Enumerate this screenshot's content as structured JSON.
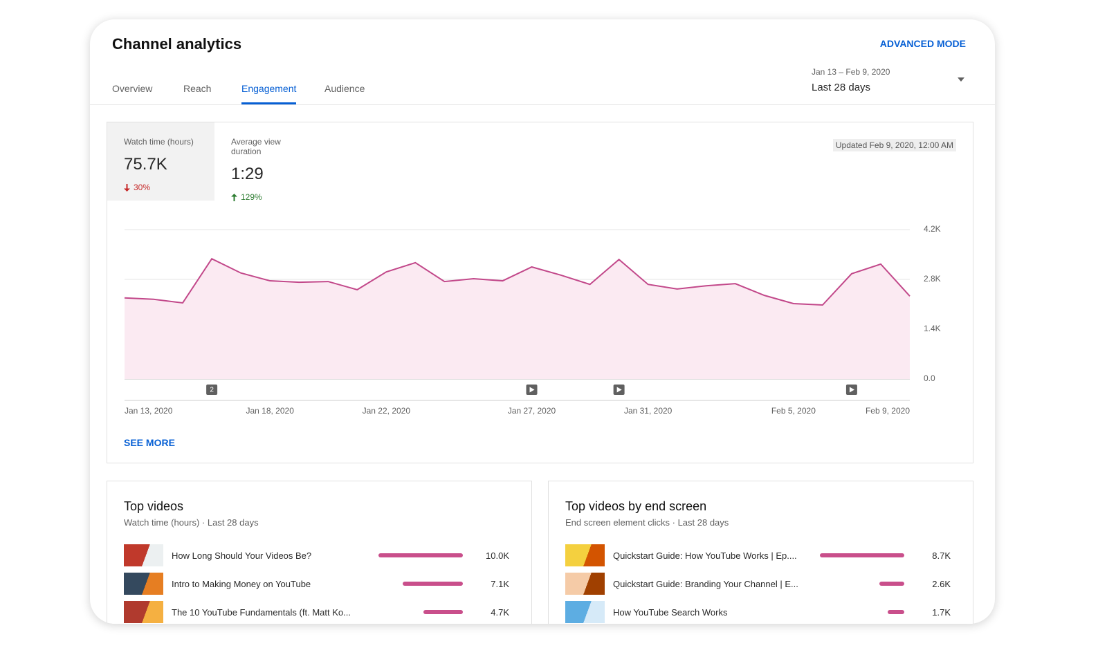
{
  "header": {
    "title": "Channel analytics",
    "advanced_mode": "ADVANCED MODE",
    "tabs": [
      "Overview",
      "Reach",
      "Engagement",
      "Audience"
    ],
    "active_tab": 2,
    "date_range": "Jan 13 – Feb 9, 2020",
    "period": "Last 28 days"
  },
  "metrics": [
    {
      "label": "Watch time (hours)",
      "value": "75.7K",
      "change": "30%",
      "trend": "down"
    },
    {
      "label": "Average view duration",
      "value": "1:29",
      "change": "129%",
      "trend": "up"
    }
  ],
  "selected_metric": 0,
  "updated": "Updated Feb 9, 2020, 12:00 AM",
  "chart_data": {
    "type": "area",
    "categories": [
      "Jan 13, 2020",
      null,
      null,
      null,
      null,
      "Jan 18, 2020",
      null,
      null,
      null,
      "Jan 22, 2020",
      null,
      null,
      null,
      null,
      "Jan 27, 2020",
      null,
      null,
      null,
      "Jan 31, 2020",
      null,
      null,
      null,
      null,
      "Feb 5, 2020",
      null,
      null,
      null,
      "Feb 9, 2020"
    ],
    "values": [
      2280,
      2240,
      2140,
      3380,
      2980,
      2760,
      2720,
      2740,
      2510,
      3010,
      3270,
      2740,
      2820,
      2760,
      3150,
      2920,
      2660,
      3360,
      2660,
      2530,
      2620,
      2680,
      2350,
      2120,
      2080,
      2960,
      3230,
      2330
    ],
    "color": "#c2488a",
    "fill": "#fbeaf2",
    "ylim": [
      0,
      4200
    ],
    "yticks": [
      {
        "value": 0,
        "label": "0.0"
      },
      {
        "value": 1400,
        "label": "1.4K"
      },
      {
        "value": 2800,
        "label": "2.8K"
      },
      {
        "value": 4200,
        "label": "4.2K"
      }
    ],
    "grid": true,
    "markers": [
      {
        "at": 3,
        "label": "2"
      },
      {
        "at": 14
      },
      {
        "at": 17
      },
      {
        "at": 25
      }
    ]
  },
  "see_more": "SEE MORE",
  "cards": [
    {
      "title": "Top videos",
      "subtitle": "Watch time (hours) · Last 28 days",
      "videos": [
        "How Long Should Your Videos Be?",
        "Intro to Making Money on YouTube",
        "The 10 YouTube Fundamentals (ft. Matt Ko..."
      ],
      "values": [
        10000,
        7100,
        4700
      ],
      "value_labels": [
        "10.0K",
        "7.1K",
        "4.7K"
      ],
      "color": "#c94f8b"
    },
    {
      "title": "Top videos by end screen",
      "subtitle": "End screen element clicks · Last 28 days",
      "videos": [
        "Quickstart Guide: How YouTube Works | Ep....",
        "Quickstart Guide: Branding Your Channel | E...",
        "How YouTube Search Works"
      ],
      "values": [
        8700,
        2600,
        1700
      ],
      "value_labels": [
        "8.7K",
        "2.6K",
        "1.7K"
      ],
      "color": "#c94f8b"
    }
  ]
}
